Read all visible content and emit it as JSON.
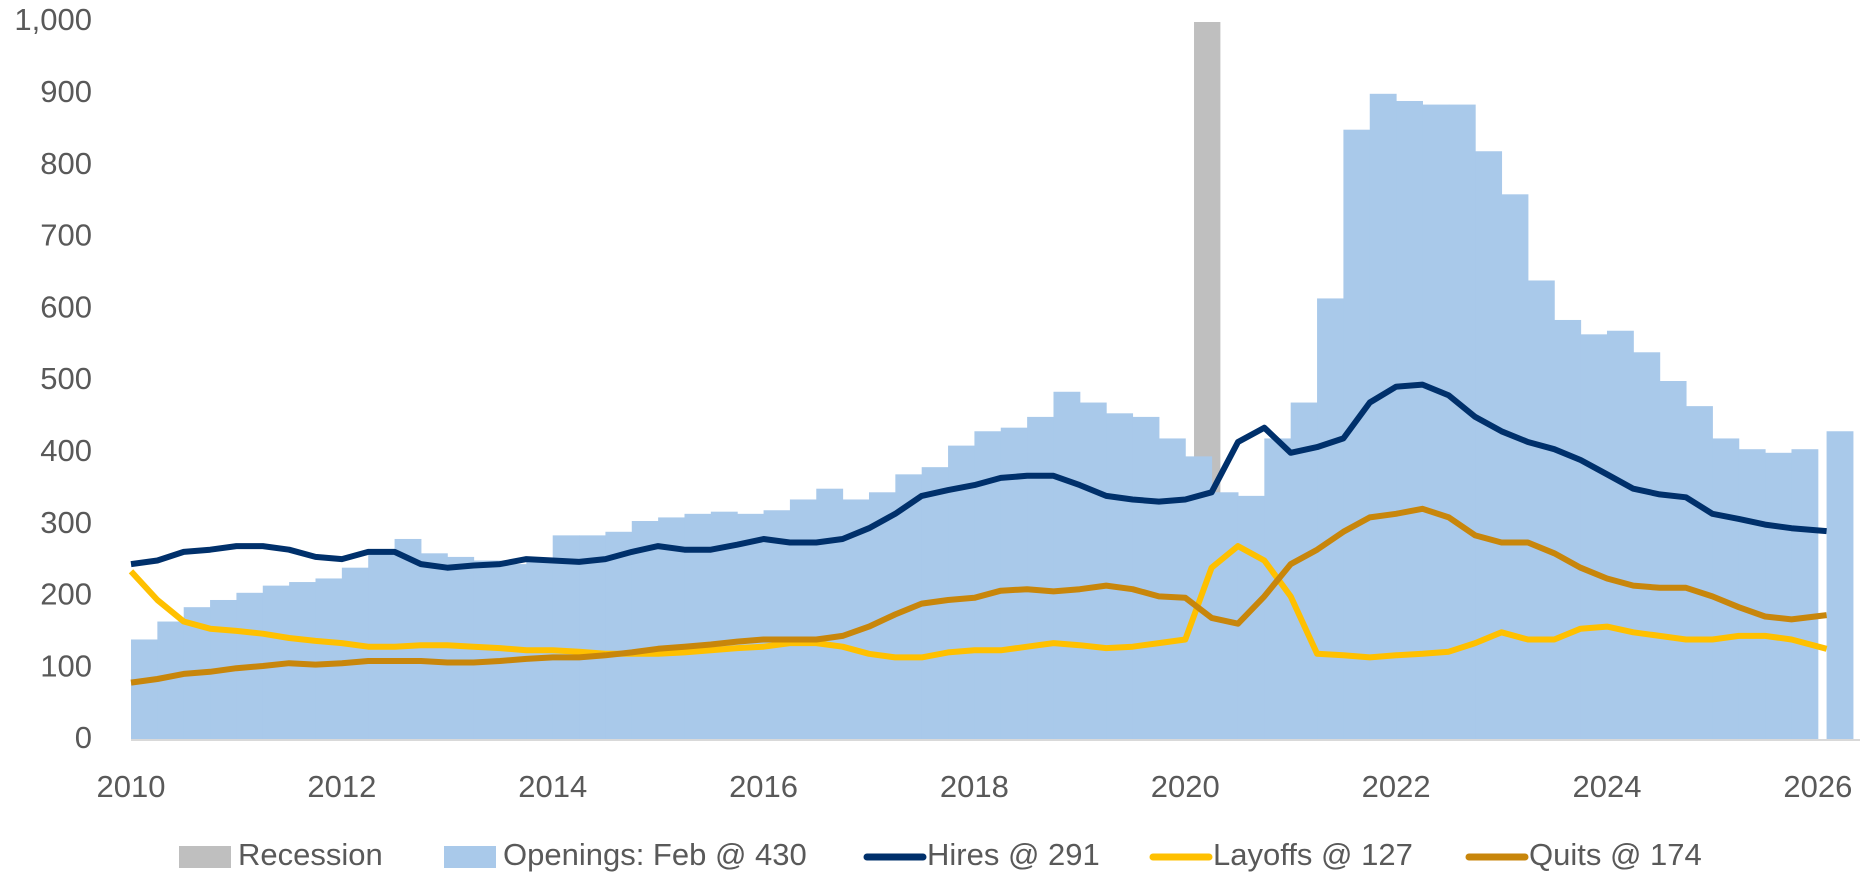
{
  "chart_data": {
    "type": "combo",
    "x": [
      2010,
      2010.25,
      2010.5,
      2010.75,
      2011,
      2011.25,
      2011.5,
      2011.75,
      2012,
      2012.25,
      2012.5,
      2012.75,
      2013,
      2013.25,
      2013.5,
      2013.75,
      2014,
      2014.25,
      2014.5,
      2014.75,
      2015,
      2015.25,
      2015.5,
      2015.75,
      2016,
      2016.25,
      2016.5,
      2016.75,
      2017,
      2017.25,
      2017.5,
      2017.75,
      2018,
      2018.25,
      2018.5,
      2018.75,
      2019,
      2019.25,
      2019.5,
      2019.75,
      2020,
      2020.25,
      2020.5,
      2020.75,
      2021,
      2021.25,
      2021.5,
      2021.75,
      2022,
      2022.25,
      2022.5,
      2022.75,
      2023,
      2023.25,
      2023.5,
      2023.75,
      2024,
      2024.25,
      2024.5,
      2024.75,
      2025,
      2025.25,
      2025.5,
      2025.75,
      2026.083
    ],
    "recession": {
      "name": "Recession",
      "color": "#bfbfbf",
      "start": 2020.083,
      "end": 2020.333
    },
    "series": [
      {
        "name": "Openings: Feb @ 430",
        "style": "bar",
        "color": "#a9c9ea",
        "values": [
          140,
          165,
          185,
          195,
          205,
          215,
          220,
          225,
          240,
          265,
          280,
          260,
          255,
          250,
          245,
          250,
          285,
          285,
          290,
          305,
          310,
          315,
          318,
          315,
          320,
          335,
          350,
          335,
          345,
          370,
          380,
          410,
          430,
          435,
          450,
          485,
          470,
          455,
          450,
          420,
          395,
          345,
          340,
          420,
          470,
          615,
          850,
          900,
          890,
          885,
          885,
          820,
          760,
          640,
          585,
          565,
          570,
          540,
          500,
          465,
          420,
          405,
          400,
          405,
          430
        ]
      },
      {
        "name": "Hires @ 291",
        "style": "line",
        "color": "#00306b",
        "values": [
          245,
          250,
          262,
          265,
          270,
          270,
          265,
          255,
          252,
          262,
          262,
          245,
          240,
          243,
          245,
          252,
          250,
          248,
          252,
          262,
          270,
          265,
          265,
          272,
          280,
          275,
          275,
          280,
          295,
          315,
          340,
          348,
          355,
          365,
          368,
          368,
          355,
          340,
          335,
          332,
          335,
          345,
          415,
          435,
          400,
          408,
          420,
          470,
          492,
          495,
          480,
          450,
          430,
          415,
          405,
          390,
          370,
          350,
          342,
          338,
          315,
          308,
          300,
          295,
          291
        ]
      },
      {
        "name": "Layoffs @ 127",
        "style": "line",
        "color": "#ffc000",
        "values": [
          235,
          195,
          165,
          155,
          152,
          148,
          142,
          138,
          135,
          130,
          130,
          132,
          132,
          130,
          128,
          125,
          125,
          123,
          120,
          120,
          120,
          122,
          125,
          128,
          130,
          135,
          135,
          130,
          120,
          115,
          115,
          122,
          125,
          125,
          130,
          135,
          132,
          128,
          130,
          135,
          140,
          240,
          270,
          250,
          200,
          120,
          118,
          115,
          118,
          120,
          123,
          135,
          150,
          140,
          140,
          155,
          158,
          150,
          145,
          140,
          140,
          145,
          145,
          140,
          127
        ]
      },
      {
        "name": "Quits @ 174",
        "style": "line",
        "color": "#c8860b",
        "values": [
          80,
          85,
          92,
          95,
          100,
          103,
          107,
          105,
          107,
          110,
          110,
          110,
          108,
          108,
          110,
          113,
          115,
          115,
          118,
          122,
          127,
          130,
          133,
          137,
          140,
          140,
          140,
          145,
          158,
          175,
          190,
          195,
          198,
          208,
          210,
          207,
          210,
          215,
          210,
          200,
          198,
          170,
          162,
          200,
          245,
          265,
          290,
          310,
          315,
          322,
          310,
          285,
          275,
          275,
          260,
          240,
          225,
          215,
          212,
          212,
          200,
          185,
          172,
          168,
          174
        ]
      }
    ],
    "xlim": [
      2010,
      2026.4
    ],
    "xticks": [
      2010,
      2012,
      2014,
      2016,
      2018,
      2020,
      2022,
      2024,
      2026
    ],
    "ylim": [
      0,
      1000
    ],
    "yticks": [
      0,
      100,
      200,
      300,
      400,
      500,
      600,
      700,
      800,
      900,
      {
        "value": 1000,
        "label": "1,000"
      }
    ],
    "legend": "bottom"
  }
}
